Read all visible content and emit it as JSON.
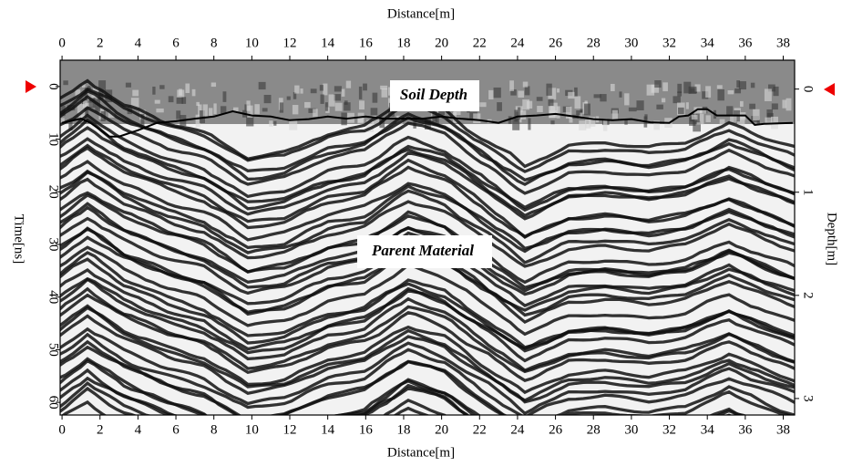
{
  "chart_data": {
    "type": "radargram",
    "xlabel": "Distance[m]",
    "ylabel": "Time[ns]",
    "y2label": "Depth[m]",
    "xlim": [
      -0.1,
      38.6
    ],
    "xticks": [
      0,
      2,
      4,
      6,
      8,
      10,
      12,
      14,
      16,
      18,
      20,
      22,
      24,
      26,
      28,
      30,
      32,
      34,
      36,
      38
    ],
    "ylim": [
      62.4,
      -5
    ],
    "yticks": [
      0,
      10,
      20,
      30,
      40,
      50,
      60
    ],
    "y2lim": [
      3.16,
      -0.28
    ],
    "y2ticks": [
      0,
      1,
      2,
      3
    ],
    "annotations": [
      "Soil Depth",
      "Parent Material"
    ],
    "boundary": {
      "color": "#000000",
      "x": [
        0,
        1,
        1.5,
        2.5,
        3,
        4,
        5,
        6,
        7,
        8,
        9,
        10,
        11,
        12,
        13,
        14,
        15,
        16,
        17,
        18,
        19,
        20,
        21,
        22,
        23,
        24,
        25,
        26,
        27,
        28,
        29,
        30,
        31,
        32,
        32.5,
        33,
        33.5,
        34,
        34.5,
        36,
        36.5,
        37,
        38.5
      ],
      "values": [
        6.9,
        6.1,
        6.9,
        9.5,
        9.5,
        8.3,
        6.9,
        6.6,
        6.1,
        5.7,
        4.7,
        5.5,
        5.7,
        6.4,
        6.2,
        5.7,
        6.1,
        5.7,
        6.1,
        6.1,
        6.1,
        5.7,
        6.1,
        6.4,
        6.9,
        5.7,
        5.5,
        5.2,
        5.7,
        6.2,
        6.4,
        6.2,
        6.8,
        6.9,
        5.7,
        5.5,
        4.3,
        4.3,
        5.5,
        5.5,
        7.3,
        7.1,
        6.9
      ]
    }
  }
}
